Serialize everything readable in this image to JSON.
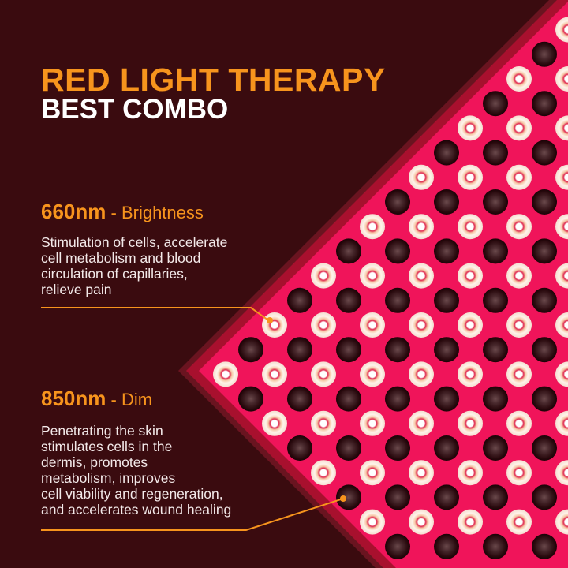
{
  "title": {
    "line1": "RED LIGHT THERAPY",
    "line2": "BEST COMBO"
  },
  "features": [
    {
      "wavelength": "660nm",
      "label": " - Brightness",
      "description": [
        "Stimulation of cells, accelerate",
        "cell metabolism and blood",
        "circulation of capillaries,",
        "relieve pain"
      ]
    },
    {
      "wavelength": "850nm",
      "label": " - Dim",
      "description": [
        "Penetrating the skin",
        "stimulates cells in the",
        "dermis, promotes",
        "metabolism, improves",
        "cell viability and regeneration,",
        "and accelerates wound healing"
      ]
    }
  ],
  "colors": {
    "background": "#3a0b0f",
    "accent": "#f7941d",
    "panel": "#f0145a",
    "panel_frame": "#a8102e",
    "led_660": "#fff4ec",
    "led_850": "#2b0a0e"
  },
  "icons": [
    "led-660nm-icon",
    "led-850nm-icon"
  ]
}
